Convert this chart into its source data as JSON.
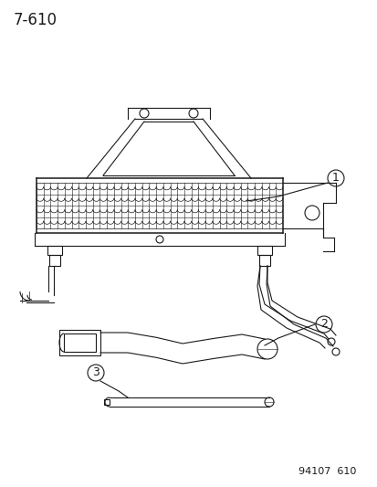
{
  "title": "7-610",
  "footer": "94107  610",
  "bg_color": "#ffffff",
  "line_color": "#1a1a1a",
  "label1": "1",
  "label2": "2",
  "label3": "3",
  "title_fontsize": 12,
  "footer_fontsize": 8,
  "label_fontsize": 9
}
